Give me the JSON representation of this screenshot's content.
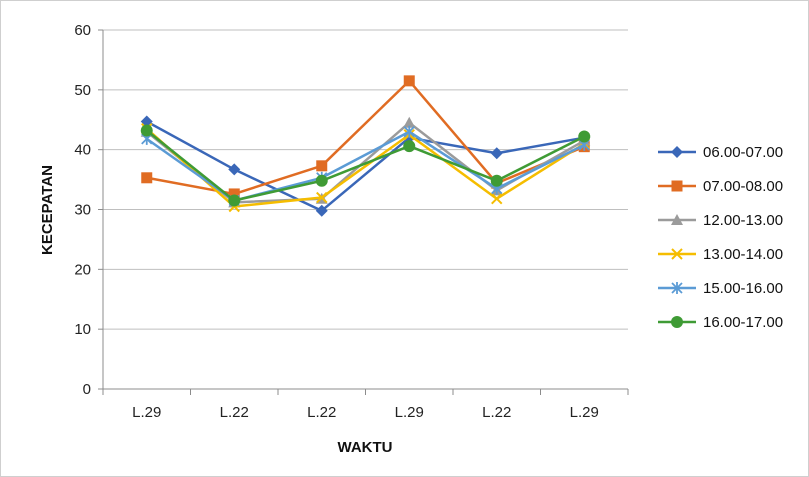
{
  "chart_data": {
    "type": "line",
    "title": "",
    "xlabel": "WAKTU",
    "ylabel": "KECEPATAN",
    "categories": [
      "L.29",
      "L.22",
      "L.22",
      "L.29",
      "L.22",
      "L.29"
    ],
    "ylim": [
      0,
      60
    ],
    "yticks": [
      "0",
      "10",
      "20",
      "30",
      "40",
      "50",
      "60"
    ],
    "grid": true,
    "legend_position": "right",
    "series": [
      {
        "name": "06.00-07.00",
        "color": "#3a67b8",
        "marker": "diamond",
        "values": [
          44.7,
          36.7,
          29.8,
          42.0,
          39.4,
          42.0
        ]
      },
      {
        "name": "07.00-08.00",
        "color": "#e06c23",
        "marker": "square",
        "values": [
          35.3,
          32.6,
          37.3,
          51.5,
          34.4,
          40.5
        ]
      },
      {
        "name": "12.00-13.00",
        "color": "#9b9b9b",
        "marker": "triangle",
        "values": [
          43.0,
          31.2,
          31.8,
          44.5,
          33.2,
          41.5
        ]
      },
      {
        "name": "13.00-14.00",
        "color": "#f5bd00",
        "marker": "x",
        "values": [
          43.5,
          30.5,
          32.0,
          42.5,
          31.8,
          41.0
        ]
      },
      {
        "name": "15.00-16.00",
        "color": "#5b9bd5",
        "marker": "asterisk",
        "values": [
          41.8,
          31.5,
          35.3,
          43.0,
          33.5,
          40.8
        ]
      },
      {
        "name": "16.00-17.00",
        "color": "#3f9b35",
        "marker": "circle",
        "values": [
          43.2,
          31.5,
          34.8,
          40.6,
          34.8,
          42.2
        ]
      }
    ]
  }
}
